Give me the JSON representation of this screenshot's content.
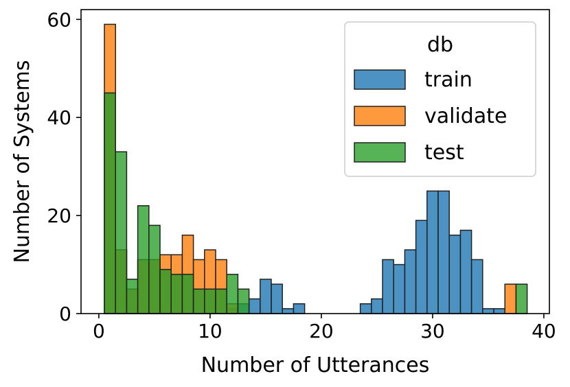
{
  "chart_data": {
    "type": "bar",
    "title": "",
    "xlabel": "Number of Utterances",
    "ylabel": "Number of Systems",
    "xlim": [
      -1.6,
      40.5
    ],
    "ylim": [
      0,
      62
    ],
    "xticks": [
      0,
      10,
      20,
      30,
      40
    ],
    "yticks": [
      0,
      20,
      40,
      60
    ],
    "bin_start": 0.5,
    "bin_width": 1,
    "grid": false,
    "legend": {
      "title": "db",
      "placement": "top-right"
    },
    "series": [
      {
        "name": "train",
        "color": "#1f77b4",
        "values": [
          45,
          13,
          5,
          11,
          11,
          9,
          8,
          8,
          5,
          5,
          5,
          1,
          2,
          3,
          7,
          6,
          1,
          2,
          0,
          0,
          0,
          0,
          0,
          2,
          3,
          11,
          10,
          13,
          19,
          25,
          25,
          16,
          17,
          11,
          1,
          1,
          0,
          0
        ]
      },
      {
        "name": "validate",
        "color": "#ff7f0e",
        "values": [
          59,
          13,
          5,
          11,
          11,
          12,
          12,
          16,
          11,
          13,
          11,
          2,
          0,
          0,
          0,
          0,
          0,
          0,
          0,
          0,
          0,
          0,
          0,
          0,
          0,
          0,
          0,
          0,
          0,
          0,
          0,
          0,
          0,
          0,
          0,
          0,
          6,
          0
        ]
      },
      {
        "name": "test",
        "color": "#2ca02c",
        "values": [
          45,
          33,
          7,
          22,
          18,
          9,
          8,
          8,
          5,
          5,
          5,
          8,
          5,
          0,
          0,
          0,
          0,
          0,
          0,
          0,
          0,
          0,
          0,
          0,
          0,
          0,
          0,
          0,
          0,
          0,
          0,
          0,
          0,
          0,
          0,
          0,
          0,
          6
        ]
      }
    ]
  }
}
